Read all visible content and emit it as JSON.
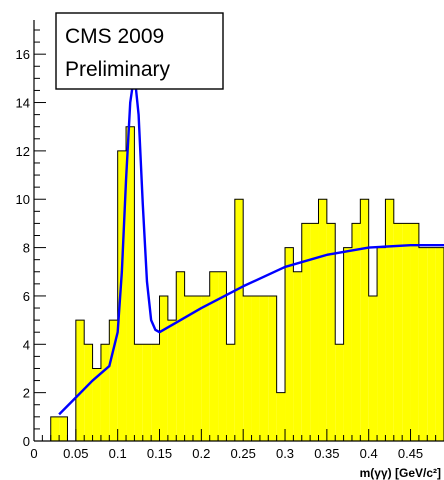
{
  "chart_data": {
    "type": "bar",
    "style": "histogram",
    "annotation": [
      "CMS 2009",
      "Preliminary"
    ],
    "xlabel": "m(γγ) [GeV/c²]",
    "ylabel": "",
    "xlim": [
      0,
      0.49
    ],
    "ylim": [
      0,
      17
    ],
    "x_ticks": [
      0,
      0.05,
      0.1,
      0.15,
      0.2,
      0.25,
      0.3,
      0.35,
      0.4,
      0.45
    ],
    "x_tick_labels": [
      "0",
      "0.05",
      "0.1",
      "0.15",
      "0.2",
      "0.25",
      "0.3",
      "0.35",
      "0.4",
      "0.45"
    ],
    "y_ticks": [
      0,
      2,
      4,
      6,
      8,
      10,
      12,
      14,
      16
    ],
    "y_tick_labels": [
      "0",
      "2",
      "4",
      "6",
      "8",
      "10",
      "12",
      "14",
      "16"
    ],
    "bin_edges": [
      0.01,
      0.02,
      0.03,
      0.04,
      0.05,
      0.06,
      0.07,
      0.08,
      0.09,
      0.1,
      0.11,
      0.12,
      0.13,
      0.14,
      0.15,
      0.16,
      0.17,
      0.18,
      0.19,
      0.2,
      0.21,
      0.22,
      0.23,
      0.24,
      0.25,
      0.26,
      0.27,
      0.28,
      0.29,
      0.3,
      0.31,
      0.32,
      0.33,
      0.34,
      0.35,
      0.36,
      0.37,
      0.38,
      0.39,
      0.4,
      0.41,
      0.42,
      0.43,
      0.44,
      0.45,
      0.46,
      0.47,
      0.48,
      0.49
    ],
    "counts": [
      0,
      1,
      1,
      0,
      5,
      4,
      3,
      4,
      5,
      12,
      13,
      4,
      4,
      4,
      6,
      5,
      7,
      6,
      6,
      6,
      7,
      7,
      4,
      10,
      6,
      6,
      6,
      6,
      2,
      8,
      7,
      9,
      9,
      10,
      9,
      4,
      8,
      9,
      10,
      6,
      8,
      10,
      9,
      9,
      9,
      8,
      8,
      8
    ],
    "fill_color": "#ffff00",
    "fit_color": "#0000ff",
    "fit_curve": {
      "x": [
        0.03,
        0.05,
        0.07,
        0.09,
        0.1,
        0.105,
        0.11,
        0.115,
        0.12,
        0.125,
        0.13,
        0.135,
        0.14,
        0.145,
        0.15,
        0.17,
        0.2,
        0.25,
        0.3,
        0.35,
        0.4,
        0.45,
        0.49
      ],
      "y": [
        1.1,
        1.8,
        2.5,
        3.1,
        4.5,
        7.0,
        10.8,
        14.0,
        15.2,
        13.5,
        9.8,
        6.6,
        5.0,
        4.6,
        4.5,
        4.9,
        5.5,
        6.4,
        7.2,
        7.7,
        8.0,
        8.1,
        8.1
      ]
    }
  }
}
